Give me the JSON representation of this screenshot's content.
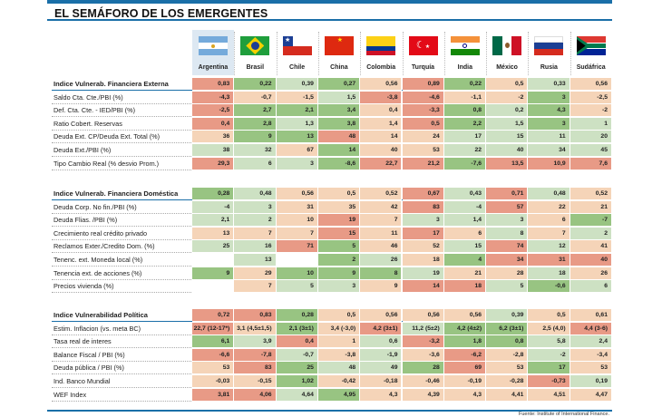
{
  "title": "EL SEMÁFORO DE LOS EMERGENTES",
  "colors": {
    "R": "#e89a86",
    "O": "#f5d4b8",
    "L": "#cde1c3",
    "G": "#98c482",
    "W": "#ffffff"
  },
  "countries": [
    {
      "name": "Argentina",
      "flag": "argentina-flag"
    },
    {
      "name": "Brasil",
      "flag": "brazil-flag"
    },
    {
      "name": "Chile",
      "flag": "chile-flag"
    },
    {
      "name": "China",
      "flag": "china-flag"
    },
    {
      "name": "Colombia",
      "flag": "colombia-flag"
    },
    {
      "name": "Turquía",
      "flag": "turkey-flag"
    },
    {
      "name": "India",
      "flag": "india-flag"
    },
    {
      "name": "México",
      "flag": "mexico-flag"
    },
    {
      "name": "Rusia",
      "flag": "russia-flag"
    },
    {
      "name": "Sudáfrica",
      "flag": "south-africa-flag"
    }
  ],
  "sections": [
    {
      "header": {
        "label": "Indice Vulnerab. Financiera Externa",
        "values": [
          "0,83",
          "0,22",
          "0,39",
          "0,27",
          "0,56",
          "0,89",
          "0,22",
          "0,5",
          "0,33",
          "0,56"
        ],
        "colors": "RGLGORGOLO"
      },
      "rows": [
        {
          "label": "Saldo Cta. Cte./PBI (%)",
          "values": [
            "-4,3",
            "-0,7",
            "-1,5",
            "1,5",
            "-3,8",
            "-4,6",
            "-1,1",
            "-2",
            "3",
            "-2,5"
          ],
          "colors": "ROOLRROOGO"
        },
        {
          "label": "Def. Cta. Cte. - IED/PBI (%)",
          "values": [
            "-2,5",
            "2,7",
            "2,1",
            "3,4",
            "0,4",
            "-3,3",
            "0,8",
            "0,2",
            "4,3",
            "-2"
          ],
          "colors": "RGGGORGLGO"
        },
        {
          "label": "Ratio Cobert. Reservas",
          "values": [
            "0,4",
            "2,8",
            "1,3",
            "3,8",
            "1,4",
            "0,5",
            "2,2",
            "1,5",
            "3",
            "1"
          ],
          "colors": "RGLGORGLGL"
        },
        {
          "label": "Deuda Ext. CP/Deuda Ext. Total (%)",
          "values": [
            "36",
            "9",
            "13",
            "48",
            "14",
            "24",
            "17",
            "15",
            "11",
            "20"
          ],
          "colors": "OGGROOLLLL"
        },
        {
          "label": "Deuda Ext./PBI (%)",
          "values": [
            "38",
            "32",
            "67",
            "14",
            "40",
            "53",
            "22",
            "40",
            "34",
            "45"
          ],
          "colors": "LLOGOOLLLL"
        },
        {
          "label": "Tipo Cambio Real (% desvio Prom.)",
          "values": [
            "29,3",
            "6",
            "3",
            "-8,6",
            "22,7",
            "21,2",
            "-7,6",
            "13,5",
            "10,9",
            "7,6"
          ],
          "colors": "RLLGRRGRRR"
        }
      ]
    },
    {
      "header": {
        "label": "Indice Vulnerab. Financiera Doméstica",
        "values": [
          "0,28",
          "0,48",
          "0,56",
          "0,5",
          "0,52",
          "0,67",
          "0,43",
          "0,71",
          "0,48",
          "0,52"
        ],
        "colors": "GLOOORLRLO"
      },
      "rows": [
        {
          "label": "Deuda Corp. No fin./PBI (%)",
          "values": [
            "-4",
            "3",
            "31",
            "35",
            "42",
            "83",
            "-4",
            "57",
            "22",
            "21"
          ],
          "colors": "LLOOORLROO"
        },
        {
          "label": "Deuda Flias. /PBI (%)",
          "values": [
            "2,1",
            "2",
            "10",
            "19",
            "7",
            "3",
            "1,4",
            "3",
            "6",
            "-7"
          ],
          "colors": "LLORPLLLOG"
        },
        {
          "label": "Crecimiento real crédito privado",
          "values": [
            "13",
            "7",
            "7",
            "15",
            "11",
            "17",
            "6",
            "8",
            "7",
            "2"
          ],
          "colors": "OOOROROLOL"
        },
        {
          "label": "Reclamos Exter./Credito Dom. (%)",
          "values": [
            "25",
            "16",
            "71",
            "5",
            "46",
            "52",
            "15",
            "74",
            "12",
            "41"
          ],
          "colors": "LLRGOOLRLO"
        },
        {
          "label": "Tenenc. ext. Moneda local (%)",
          "values": [
            "",
            "13",
            "",
            "2",
            "26",
            "18",
            "4",
            "34",
            "31",
            "40"
          ],
          "colors": "WLWGLOGRRR"
        },
        {
          "label": "Tenencia ext. de acciones (%)",
          "values": [
            "9",
            "29",
            "10",
            "9",
            "8",
            "19",
            "21",
            "28",
            "18",
            "26"
          ],
          "colors": "GOGGGLOOLO"
        },
        {
          "label": "Precios vivienda (%)",
          "values": [
            "",
            "7",
            "5",
            "3",
            "9",
            "14",
            "18",
            "5",
            "-0,6",
            "6"
          ],
          "colors": "WOLLORRLGL"
        }
      ]
    },
    {
      "header": {
        "label": "Indice Vulnerabilidad Política",
        "values": [
          "0,72",
          "0,83",
          "0,28",
          "0,5",
          "0,56",
          "0,56",
          "0,56",
          "0,39",
          "0,5",
          "0,61"
        ],
        "colors": "RRGOOOOLOO"
      },
      "rows": [
        {
          "label": "Estim. Inflacion (vs. meta BC)",
          "values": [
            "22,7 (12-17*)",
            "3,1 (4,5±1,5)",
            "2,1 (3±1)",
            "3,4 (-3,0)",
            "4,2 (3±1)",
            "11,2 (5±2)",
            "4,2 (4±2)",
            "6,2 (3±1)",
            "2,5 (4,0)",
            "4,4 (3-6)"
          ],
          "colors": "ROGORLGGOR"
        },
        {
          "label": "Tasa real de interes",
          "values": [
            "6,1",
            "3,9",
            "0,4",
            "1",
            "0,6",
            "-3,2",
            "1,8",
            "0,8",
            "5,8",
            "2,4"
          ],
          "colors": "GLROLRGGLL"
        },
        {
          "label": "Balance Fiscal / PBI (%)",
          "values": [
            "-6,6",
            "-7,8",
            "-0,7",
            "-3,8",
            "-1,9",
            "-3,6",
            "-6,2",
            "-2,8",
            "-2",
            "-3,4"
          ],
          "colors": "RRLOLOROLO"
        },
        {
          "label": "Deuda pública / PBI (%)",
          "values": [
            "53",
            "83",
            "25",
            "48",
            "49",
            "28",
            "69",
            "53",
            "17",
            "53"
          ],
          "colors": "ORGLLGROGO"
        },
        {
          "label": "Ind. Banco Mundial",
          "values": [
            "-0,03",
            "-0,15",
            "1,02",
            "-0,42",
            "-0,18",
            "-0,46",
            "-0,19",
            "-0,28",
            "-0,73",
            "0,19"
          ],
          "colors": "OOGOOOOORL"
        },
        {
          "label": "WEF Index",
          "values": [
            "3,81",
            "4,06",
            "4,64",
            "4,95",
            "4,3",
            "4,39",
            "4,3",
            "4,41",
            "4,51",
            "4,47"
          ],
          "colors": "RRLGOOOOOO"
        }
      ]
    }
  ],
  "source": "Fuente: Institute of International Finance."
}
